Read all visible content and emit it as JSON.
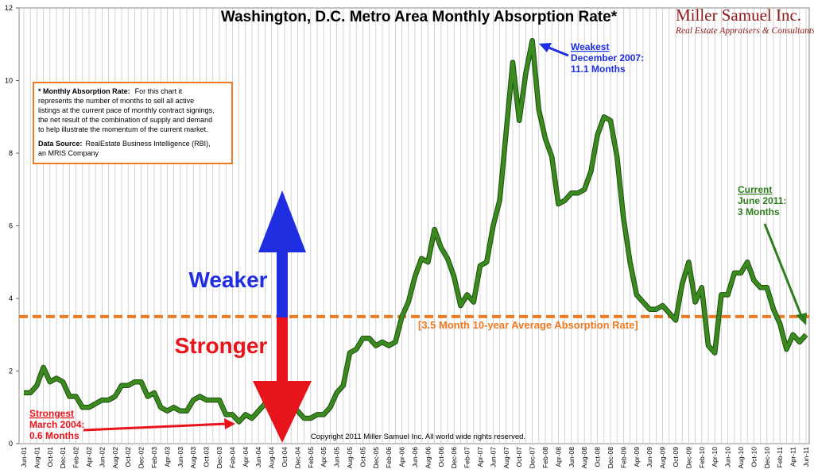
{
  "chart_data": {
    "type": "line",
    "title": "Washington, D.C. Metro Area Monthly Absorption Rate*",
    "logo": {
      "name": "Miller Samuel Inc.",
      "tagline": "Real Estate Appraisers & Consultants"
    },
    "copyright": "Copyright 2011 Miller Samuel Inc.  All world wide rights reserved.",
    "categories": [
      "Jun-01",
      null,
      "Aug-01",
      null,
      "Oct-01",
      null,
      "Dec-01",
      null,
      "Feb-02",
      null,
      "Apr-02",
      null,
      "Jun-02",
      null,
      "Aug-02",
      null,
      "Oct-02",
      null,
      "Dec-02",
      null,
      "Feb-03",
      null,
      "Apr-03",
      null,
      "Jun-03",
      null,
      "Aug-03",
      null,
      "Oct-03",
      null,
      "Dec-03",
      null,
      "Feb-04",
      null,
      "Apr-04",
      null,
      "Jun-04",
      null,
      "Aug-04",
      null,
      "Oct-04",
      null,
      "Dec-04",
      null,
      "Feb-05",
      null,
      "Apr-05",
      null,
      "Jun-05",
      null,
      "Aug-05",
      null,
      "Oct-05",
      null,
      "Dec-05",
      null,
      "Feb-06",
      null,
      "Apr-06",
      null,
      "Jun-06",
      null,
      "Aug-06",
      null,
      "Oct-06",
      null,
      "Dec-06",
      null,
      "Feb-07",
      null,
      "Apr-07",
      null,
      "Jun-07",
      null,
      "Aug-07",
      null,
      "Oct-07",
      null,
      "Dec-07",
      null,
      "Feb-08",
      null,
      "Apr-08",
      null,
      "Jun-08",
      null,
      "Aug-08",
      null,
      "Oct-08",
      null,
      "Dec-08",
      null,
      "Feb-09",
      null,
      "Apr-09",
      null,
      "Jun-09",
      null,
      "Aug-09",
      null,
      "Oct-09",
      null,
      "Dec-09",
      null,
      "Feb-10",
      null,
      "Apr-10",
      null,
      "Jun-10",
      null,
      "Aug-10",
      null,
      "Oct-10",
      null,
      "Dec-10",
      null,
      "Feb-11",
      null,
      "Apr-11",
      null,
      "Jun-11"
    ],
    "values": [
      1.4,
      1.4,
      1.6,
      2.1,
      1.7,
      1.8,
      1.7,
      1.3,
      1.3,
      1.0,
      1.0,
      1.1,
      1.2,
      1.2,
      1.3,
      1.6,
      1.6,
      1.7,
      1.7,
      1.3,
      1.4,
      1.0,
      0.9,
      1.0,
      0.9,
      0.9,
      1.2,
      1.3,
      1.2,
      1.2,
      1.2,
      0.8,
      0.8,
      0.6,
      0.8,
      0.7,
      0.9,
      1.1,
      1.3,
      1.2,
      1.0,
      0.9,
      0.9,
      0.7,
      0.7,
      0.8,
      0.8,
      1.0,
      1.4,
      1.6,
      2.5,
      2.6,
      2.9,
      2.9,
      2.7,
      2.8,
      2.7,
      2.8,
      3.5,
      3.9,
      4.6,
      5.1,
      5.0,
      5.9,
      5.4,
      5.1,
      4.6,
      3.8,
      4.1,
      3.9,
      4.9,
      5.0,
      6.0,
      6.7,
      8.6,
      10.5,
      8.9,
      10.2,
      11.1,
      9.2,
      8.4,
      7.9,
      6.6,
      6.7,
      6.9,
      6.9,
      7.0,
      7.5,
      8.5,
      9.0,
      8.9,
      7.9,
      6.2,
      5.0,
      4.1,
      3.9,
      3.7,
      3.7,
      3.8,
      3.6,
      3.4,
      4.4,
      5.0,
      3.9,
      4.3,
      2.7,
      2.5,
      4.1,
      4.1,
      4.7,
      4.7,
      5.0,
      4.5,
      4.3,
      4.3,
      3.7,
      3.3,
      2.6,
      3.0,
      2.8,
      3.0
    ],
    "color": "#3b8a1f",
    "ylim": [
      0,
      12
    ],
    "yticks": [
      0,
      2,
      4,
      6,
      8,
      10,
      12
    ],
    "grid": true,
    "average": {
      "value": 3.5,
      "label": "[3.5 Month 10-year Average Absorption Rate]",
      "color": "#ee7a22"
    },
    "direction": {
      "up": "Weaker",
      "down": "Stronger"
    },
    "annotations": {
      "weakest": [
        "Weakest",
        "December 2007:",
        "11.1 Months"
      ],
      "current": [
        "Current",
        "June 2011:",
        "3 Months"
      ],
      "strongest": [
        "Strongest",
        "March 2004:",
        "0.6 Months"
      ]
    },
    "note": {
      "heading": "* Monthly Absorption Rate:",
      "heading_rest": "For this chart it",
      "lines": [
        "represents the number of months to sell all active",
        "listings at the current pace of monthly contract signings,",
        "the net result of the combination of supply and demand",
        "to help illustrate the momentum of the current market."
      ],
      "source_heading": "Data Source:",
      "source_rest": "RealEstate Business Intelligence (RBI),",
      "source_line2": "an MRIS Company"
    }
  }
}
